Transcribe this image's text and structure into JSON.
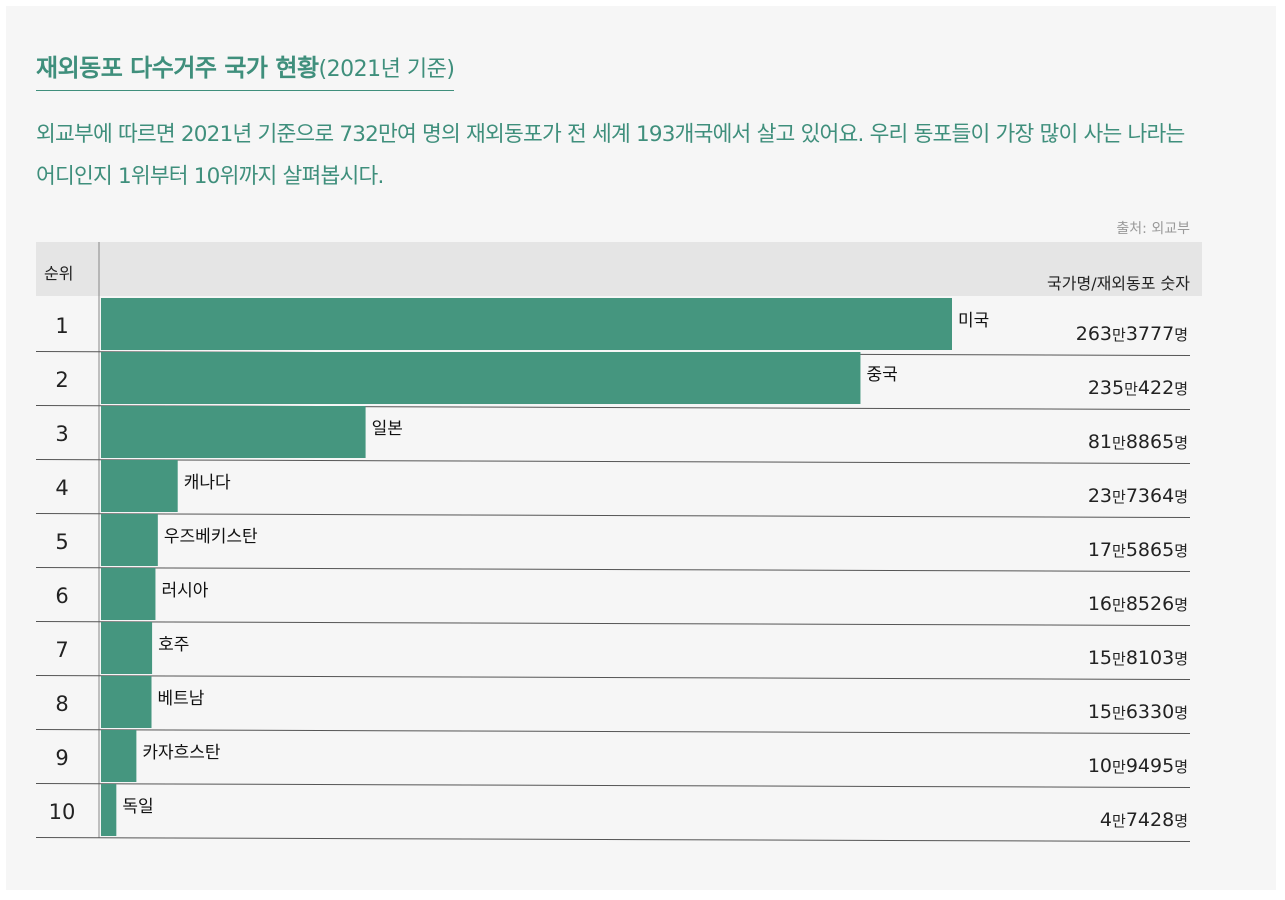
{
  "header": {
    "title": "재외동포 다수거주 국가 현황",
    "title_sub": "(2021년 기준)",
    "description": "외교부에 따르면 2021년 기준으로 732만여 명의 재외동포가 전 세계 193개국에서 살고 있어요. 우리 동포들이 가장 많이 사는 나라는 어디인지 1위부터 10위까지 살펴봅시다.",
    "source": "출처: 외교부"
  },
  "table": {
    "rank_header": "순위",
    "column_header": "국가명/재외동포 숫자",
    "unit_man": "만",
    "unit_myeong": "명"
  },
  "chart_data": {
    "type": "bar",
    "orientation": "horizontal",
    "categories": [
      "미국",
      "중국",
      "일본",
      "캐나다",
      "우즈베키스탄",
      "러시아",
      "호주",
      "베트남",
      "카자흐스탄",
      "독일"
    ],
    "ranks": [
      "1",
      "2",
      "3",
      "4",
      "5",
      "6",
      "7",
      "8",
      "9",
      "10"
    ],
    "values": [
      2633777,
      2350422,
      818865,
      237364,
      175865,
      168526,
      158103,
      156330,
      109495,
      47428
    ],
    "value_labels": [
      [
        "263",
        "3777"
      ],
      [
        "235",
        "422"
      ],
      [
        "81",
        "8865"
      ],
      [
        "23",
        "7364"
      ],
      [
        "17",
        "5865"
      ],
      [
        "16",
        "8526"
      ],
      [
        "15",
        "8103"
      ],
      [
        "15",
        "6330"
      ],
      [
        "10",
        "9495"
      ],
      [
        "4",
        "7428"
      ]
    ],
    "bar_color": "#45967f",
    "xlim": [
      0,
      2633777
    ],
    "grid": false,
    "legend": "none"
  }
}
